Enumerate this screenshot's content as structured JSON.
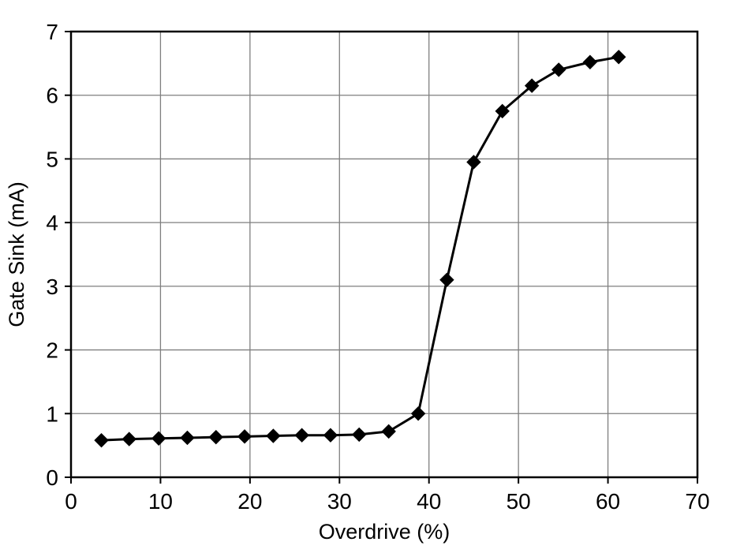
{
  "chart_data": {
    "type": "line",
    "title": "",
    "xlabel": "Overdrive (%)",
    "ylabel": "Gate Sink (mA)",
    "xlim": [
      0,
      70
    ],
    "ylim": [
      0,
      7
    ],
    "xticks": [
      0,
      10,
      20,
      30,
      40,
      50,
      60,
      70
    ],
    "yticks": [
      0,
      1,
      2,
      3,
      4,
      5,
      6,
      7
    ],
    "grid": true,
    "legend": "none",
    "marker": "diamond",
    "series": [
      {
        "name": "Gate Sink",
        "x": [
          3.4,
          6.5,
          9.8,
          13.0,
          16.2,
          19.4,
          22.6,
          25.8,
          29.0,
          32.2,
          35.5,
          38.8,
          42.0,
          45.0,
          48.2,
          51.5,
          54.5,
          58.0,
          61.2
        ],
        "y": [
          0.58,
          0.6,
          0.61,
          0.62,
          0.63,
          0.64,
          0.65,
          0.66,
          0.66,
          0.67,
          0.72,
          1.0,
          3.1,
          4.95,
          5.75,
          6.15,
          6.4,
          6.52,
          6.6
        ]
      }
    ],
    "colors": {
      "line": "#000000",
      "marker": "#000000",
      "grid": "#7f7f7f",
      "frame": "#000000",
      "background": "#ffffff"
    }
  }
}
